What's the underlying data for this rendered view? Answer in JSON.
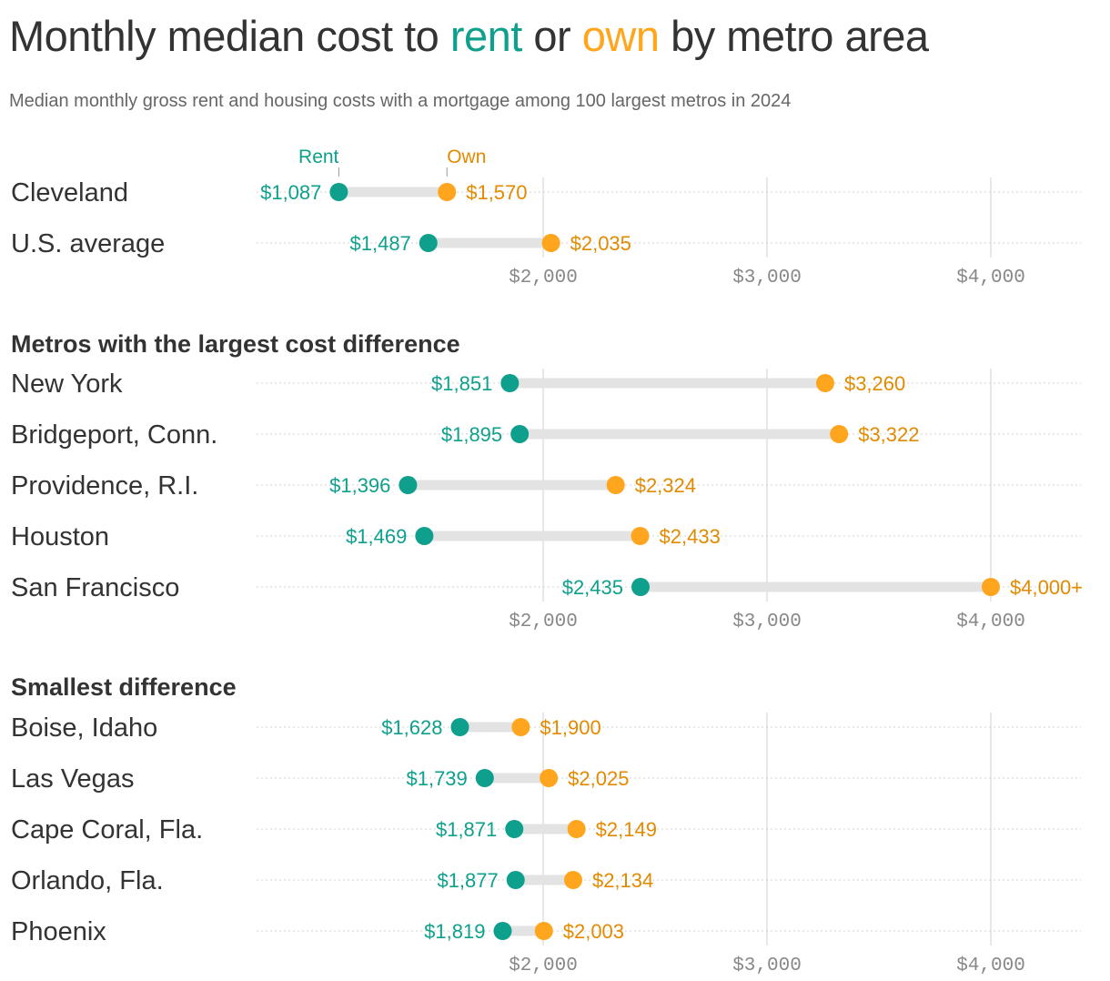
{
  "title": {
    "prefix": "Monthly median cost to ",
    "rent": "rent",
    "middle": " or ",
    "own": "own",
    "suffix": " by metro area"
  },
  "subtitle": "Median monthly gross rent and housing costs with a mortgage among 100 largest metros in 2024",
  "colors": {
    "rent": "#0fa08d",
    "own": "#ffa51e",
    "own_text": "#e28a00",
    "bar": "#e3e3e3",
    "grid": "#e0e0e0",
    "tick": "#888888"
  },
  "chart_data": {
    "type": "dumbbell",
    "legend": {
      "rent": "Rent",
      "own": "Own"
    },
    "x_ticks": [
      2000,
      3000,
      4000
    ],
    "x_tick_labels": [
      "$2,000",
      "$3,000",
      "$4,000"
    ],
    "grid": true,
    "panels": [
      {
        "heading": "",
        "rows": [
          {
            "name": "Cleveland",
            "rent": 1087,
            "own": 1570,
            "rent_label": "$1,087",
            "own_label": "$1,570"
          },
          {
            "name": "U.S. average",
            "rent": 1487,
            "own": 2035,
            "rent_label": "$1,487",
            "own_label": "$2,035"
          }
        ]
      },
      {
        "heading": "Metros with the largest cost difference",
        "rows": [
          {
            "name": "New York",
            "rent": 1851,
            "own": 3260,
            "rent_label": "$1,851",
            "own_label": "$3,260"
          },
          {
            "name": "Bridgeport, Conn.",
            "rent": 1895,
            "own": 3322,
            "rent_label": "$1,895",
            "own_label": "$3,322"
          },
          {
            "name": "Providence, R.I.",
            "rent": 1396,
            "own": 2324,
            "rent_label": "$1,396",
            "own_label": "$2,324"
          },
          {
            "name": "Houston",
            "rent": 1469,
            "own": 2433,
            "rent_label": "$1,469",
            "own_label": "$2,433"
          },
          {
            "name": "San Francisco",
            "rent": 2435,
            "own": 4000,
            "rent_label": "$2,435",
            "own_label": "$4,000+"
          }
        ]
      },
      {
        "heading": "Smallest difference",
        "rows": [
          {
            "name": "Boise, Idaho",
            "rent": 1628,
            "own": 1900,
            "rent_label": "$1,628",
            "own_label": "$1,900"
          },
          {
            "name": "Las Vegas",
            "rent": 1739,
            "own": 2025,
            "rent_label": "$1,739",
            "own_label": "$2,025"
          },
          {
            "name": "Cape Coral, Fla.",
            "rent": 1871,
            "own": 2149,
            "rent_label": "$1,871",
            "own_label": "$2,149"
          },
          {
            "name": "Orlando, Fla.",
            "rent": 1877,
            "own": 2134,
            "rent_label": "$1,877",
            "own_label": "$2,134"
          },
          {
            "name": "Phoenix",
            "rent": 1819,
            "own": 2003,
            "rent_label": "$1,819",
            "own_label": "$2,003"
          }
        ]
      }
    ]
  }
}
